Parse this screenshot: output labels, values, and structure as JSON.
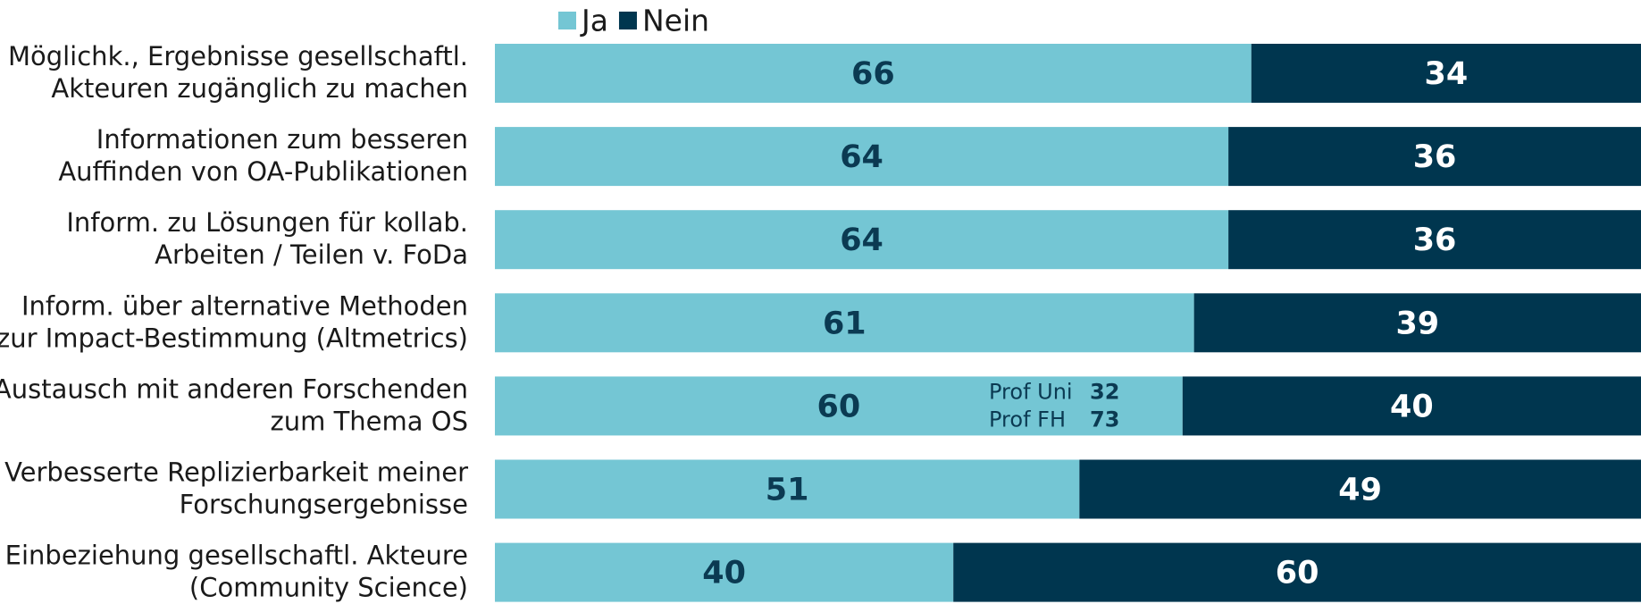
{
  "chart_data": {
    "type": "stacked_bar_horizontal",
    "categories": [
      [
        "Möglichk., Ergebnisse gesellschaftl.",
        "Akteuren zugänglich zu machen"
      ],
      [
        "Informationen zum besseren",
        "Auffinden von OA-Publikationen"
      ],
      [
        "Inform. zu Lösungen für kollab.",
        "Arbeiten / Teilen v. FoDa"
      ],
      [
        "Inform. über alternative Methoden",
        "zur Impact-Bestimmung (Altmetrics)"
      ],
      [
        "Austausch mit anderen Forschenden",
        "zum Thema OS"
      ],
      [
        "Verbesserte Replizierbarkeit meiner",
        "Forschungsergebnisse"
      ],
      [
        "Einbeziehung gesellschaftl. Akteure",
        "(Community Science)"
      ]
    ],
    "series": [
      {
        "name": "Ja",
        "color": "#74c6d4",
        "label_color": "#0b3a52",
        "values": [
          66,
          64,
          64,
          61,
          60,
          51,
          40
        ]
      },
      {
        "name": "Nein",
        "color": "#00364f",
        "label_color": "#ffffff",
        "values": [
          34,
          36,
          36,
          39,
          40,
          49,
          60
        ]
      }
    ],
    "xlim": [
      0,
      100
    ],
    "legend": "top",
    "annotation": {
      "category": 4,
      "rows": [
        {
          "label": "Prof Uni",
          "value": 32
        },
        {
          "label": "Prof FH",
          "value": 73
        }
      ]
    }
  }
}
